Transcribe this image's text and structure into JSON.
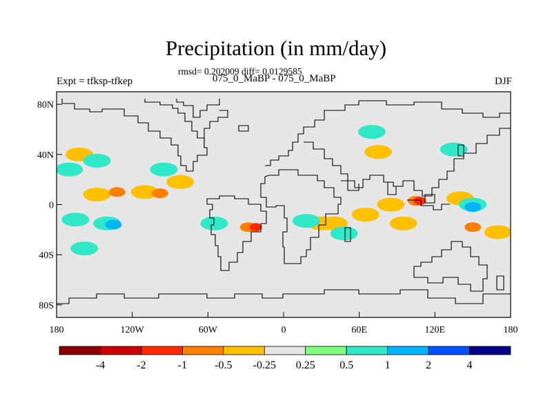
{
  "title": "Precipitation (in mm/day)",
  "stats_text": "rmsd= 0.202009 diff= 0.0129585",
  "left_label": "Expt = tfksp-tfkep",
  "center_label": "075_0_MaBP - 075_0_MaBP",
  "right_label": "DJF",
  "axes": {
    "lon_ticks": [
      "180",
      "120W",
      "60W",
      "0",
      "60E",
      "120E",
      "180"
    ],
    "lat_ticks": [
      "80N",
      "40N",
      "0",
      "40S",
      "80S"
    ],
    "lon_range": [
      -180,
      180
    ],
    "lat_range": [
      -90,
      90
    ]
  },
  "colors": {
    "ocean_land_fill": "#e6e6e6",
    "coast": "#000000"
  },
  "colorbar": {
    "colors": [
      "#8b0000",
      "#cc0000",
      "#ff2a00",
      "#ff7f00",
      "#ffc000",
      "#e6e6e6",
      "#7fff7f",
      "#2ee8c8",
      "#00b4ff",
      "#0050ff",
      "#00008b"
    ],
    "labels": [
      "-4",
      "-2",
      "-1",
      "-0.5",
      "-0.25",
      "0.25",
      "0.5",
      "1",
      "2",
      "4"
    ]
  },
  "chart_data": {
    "type": "heatmap",
    "title": "Precipitation (in mm/day)",
    "field": "precipitation difference (tfksp - tfkep), DJF",
    "units": "mm/day",
    "levels": [
      -4,
      -2,
      -1,
      -0.5,
      -0.25,
      0.25,
      0.5,
      1,
      2,
      4
    ],
    "anomalies": [
      {
        "lon": -148,
        "lat": 8,
        "value": -0.5
      },
      {
        "lon": -132,
        "lat": 10,
        "value": -1
      },
      {
        "lon": -110,
        "lat": 10,
        "value": -0.5
      },
      {
        "lon": -98,
        "lat": 9,
        "value": -1
      },
      {
        "lon": -82,
        "lat": 18,
        "value": -0.5
      },
      {
        "lon": -170,
        "lat": 28,
        "value": 0.5
      },
      {
        "lon": -162,
        "lat": 40,
        "value": -0.5
      },
      {
        "lon": -148,
        "lat": 35,
        "value": 0.5
      },
      {
        "lon": -95,
        "lat": 28,
        "value": 0.5
      },
      {
        "lon": -50,
        "lat": 50,
        "value": -0.25
      },
      {
        "lon": -165,
        "lat": -12,
        "value": 0.5
      },
      {
        "lon": -140,
        "lat": -15,
        "value": 0.5
      },
      {
        "lon": -135,
        "lat": -16,
        "value": 1
      },
      {
        "lon": -158,
        "lat": -35,
        "value": 0.5
      },
      {
        "lon": -55,
        "lat": -15,
        "value": 0.5
      },
      {
        "lon": -28,
        "lat": -18,
        "value": -1
      },
      {
        "lon": -22,
        "lat": -18,
        "value": -2
      },
      {
        "lon": 30,
        "lat": -15,
        "value": -0.5
      },
      {
        "lon": 40,
        "lat": -15,
        "value": -0.5
      },
      {
        "lon": 18,
        "lat": -13,
        "value": 0.5
      },
      {
        "lon": 48,
        "lat": -23,
        "value": 0.5
      },
      {
        "lon": 65,
        "lat": -8,
        "value": -0.5
      },
      {
        "lon": 85,
        "lat": 0,
        "value": -0.5
      },
      {
        "lon": 105,
        "lat": 3,
        "value": -1
      },
      {
        "lon": 108,
        "lat": 3,
        "value": -2
      },
      {
        "lon": 95,
        "lat": -15,
        "value": -0.5
      },
      {
        "lon": 140,
        "lat": 5,
        "value": -0.5
      },
      {
        "lon": 150,
        "lat": 0,
        "value": 0.5
      },
      {
        "lon": 150,
        "lat": -2,
        "value": 1
      },
      {
        "lon": 150,
        "lat": -18,
        "value": -1
      },
      {
        "lon": 170,
        "lat": -22,
        "value": -0.5
      },
      {
        "lon": 70,
        "lat": 58,
        "value": 0.5
      },
      {
        "lon": 135,
        "lat": 44,
        "value": 0.5
      },
      {
        "lon": 75,
        "lat": 42,
        "value": -0.5
      }
    ]
  }
}
